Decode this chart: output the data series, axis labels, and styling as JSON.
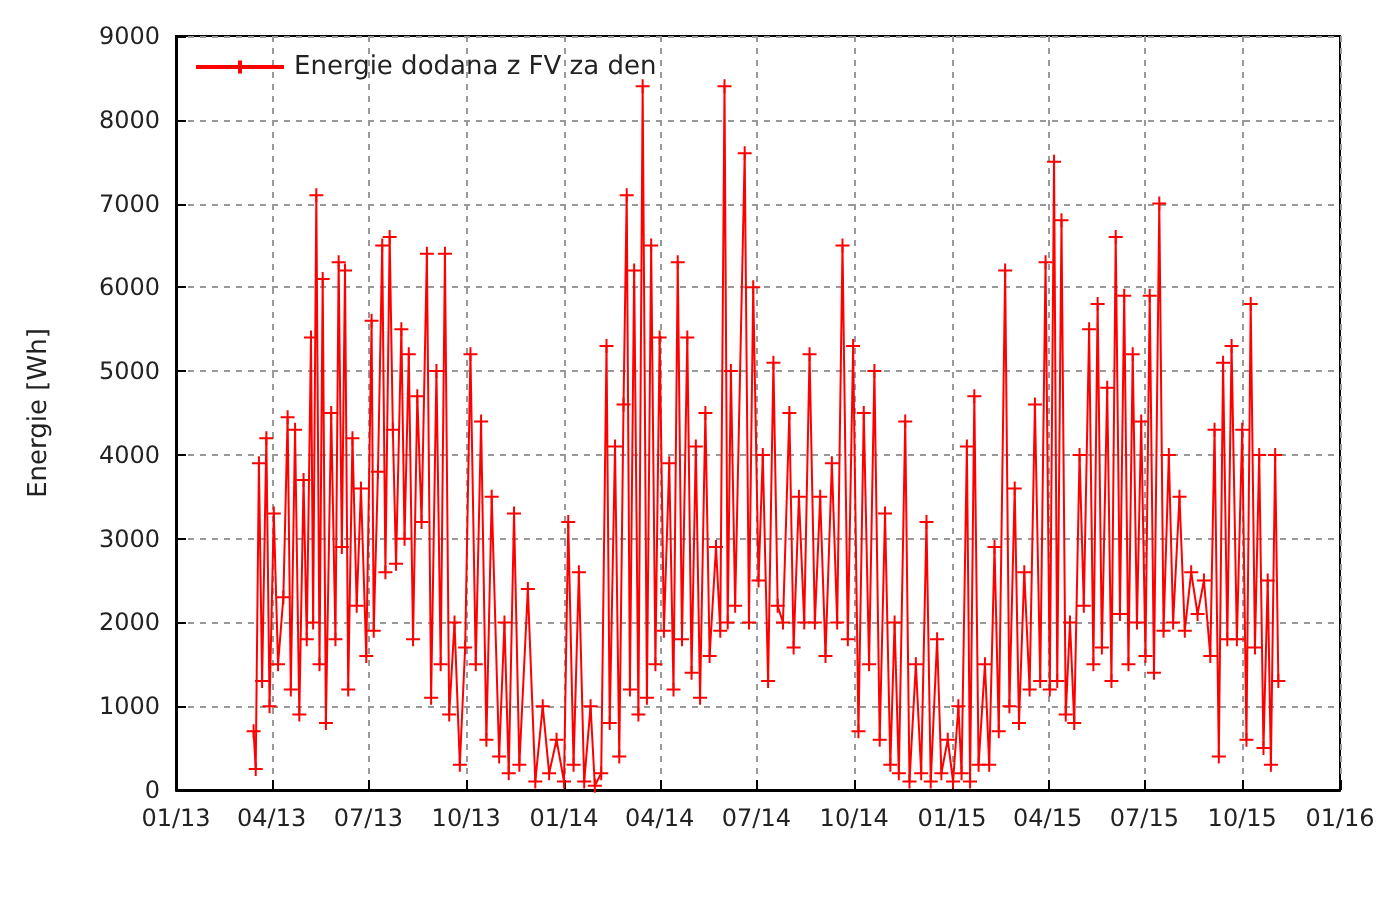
{
  "chart_data": {
    "type": "line",
    "ylabel": "Energie [Wh]",
    "legend": "top left",
    "grid": true,
    "marker": "cross",
    "line_style": "solid",
    "xlim": [
      "2013-01-01",
      "2016-01-01"
    ],
    "xticks": [
      {
        "value": "2013-01-01",
        "label": "01/13"
      },
      {
        "value": "2013-04-01",
        "label": "04/13"
      },
      {
        "value": "2013-07-01",
        "label": "07/13"
      },
      {
        "value": "2013-10-01",
        "label": "10/13"
      },
      {
        "value": "2014-01-01",
        "label": "01/14"
      },
      {
        "value": "2014-04-01",
        "label": "04/14"
      },
      {
        "value": "2014-07-01",
        "label": "07/14"
      },
      {
        "value": "2014-10-01",
        "label": "10/14"
      },
      {
        "value": "2015-01-01",
        "label": "01/15"
      },
      {
        "value": "2015-04-01",
        "label": "04/15"
      },
      {
        "value": "2015-07-01",
        "label": "07/15"
      },
      {
        "value": "2015-10-01",
        "label": "10/15"
      },
      {
        "value": "2016-01-01",
        "label": "01/16"
      }
    ],
    "ylim": [
      0,
      9000
    ],
    "yticks": [
      0,
      1000,
      2000,
      3000,
      4000,
      5000,
      6000,
      7000,
      8000,
      9000
    ],
    "x": [
      "2013-03-15",
      "2013-03-17",
      "2013-03-20",
      "2013-03-23",
      "2013-03-27",
      "2013-03-30",
      "2013-04-03",
      "2013-04-07",
      "2013-04-12",
      "2013-04-16",
      "2013-04-19",
      "2013-04-23",
      "2013-04-27",
      "2013-05-01",
      "2013-05-04",
      "2013-05-08",
      "2013-05-10",
      "2013-05-13",
      "2013-05-16",
      "2013-05-19",
      "2013-05-22",
      "2013-05-27",
      "2013-05-31",
      "2013-06-03",
      "2013-06-06",
      "2013-06-09",
      "2013-06-12",
      "2013-06-16",
      "2013-06-20",
      "2013-06-24",
      "2013-06-29",
      "2013-07-04",
      "2013-07-06",
      "2013-07-10",
      "2013-07-14",
      "2013-07-17",
      "2013-07-21",
      "2013-07-24",
      "2013-07-27",
      "2013-08-01",
      "2013-08-04",
      "2013-08-08",
      "2013-08-12",
      "2013-08-16",
      "2013-08-20",
      "2013-08-25",
      "2013-08-29",
      "2013-09-03",
      "2013-09-07",
      "2013-09-11",
      "2013-09-15",
      "2013-09-20",
      "2013-09-25",
      "2013-09-30",
      "2013-10-05",
      "2013-10-10",
      "2013-10-15",
      "2013-10-20",
      "2013-10-25",
      "2013-11-01",
      "2013-11-06",
      "2013-11-10",
      "2013-11-15",
      "2013-11-20",
      "2013-11-28",
      "2013-12-05",
      "2013-12-12",
      "2013-12-18",
      "2013-12-25",
      "2014-01-01",
      "2014-01-05",
      "2014-01-10",
      "2014-01-15",
      "2014-01-20",
      "2014-01-26",
      "2014-01-30",
      "2014-02-05",
      "2014-02-10",
      "2014-02-13",
      "2014-02-18",
      "2014-02-22",
      "2014-02-26",
      "2014-03-01",
      "2014-03-04",
      "2014-03-08",
      "2014-03-12",
      "2014-03-16",
      "2014-03-20",
      "2014-03-24",
      "2014-03-28",
      "2014-04-01",
      "2014-04-05",
      "2014-04-10",
      "2014-04-14",
      "2014-04-18",
      "2014-04-22",
      "2014-04-27",
      "2014-05-01",
      "2014-05-05",
      "2014-05-09",
      "2014-05-14",
      "2014-05-18",
      "2014-05-24",
      "2014-05-28",
      "2014-06-01",
      "2014-06-04",
      "2014-06-07",
      "2014-06-11",
      "2014-06-20",
      "2014-06-24",
      "2014-06-28",
      "2014-07-03",
      "2014-07-07",
      "2014-07-12",
      "2014-07-17",
      "2014-07-21",
      "2014-07-26",
      "2014-08-01",
      "2014-08-05",
      "2014-08-10",
      "2014-08-15",
      "2014-08-20",
      "2014-08-25",
      "2014-08-30",
      "2014-09-04",
      "2014-09-10",
      "2014-09-15",
      "2014-09-20",
      "2014-09-25",
      "2014-09-30",
      "2014-10-05",
      "2014-10-10",
      "2014-10-15",
      "2014-10-20",
      "2014-10-25",
      "2014-10-30",
      "2014-11-04",
      "2014-11-08",
      "2014-11-12",
      "2014-11-18",
      "2014-11-22",
      "2014-11-28",
      "2014-12-03",
      "2014-12-08",
      "2014-12-12",
      "2014-12-18",
      "2014-12-22",
      "2014-12-28",
      "2015-01-02",
      "2015-01-07",
      "2015-01-10",
      "2015-01-15",
      "2015-01-18",
      "2015-01-22",
      "2015-01-26",
      "2015-02-01",
      "2015-02-05",
      "2015-02-10",
      "2015-02-14",
      "2015-02-20",
      "2015-02-24",
      "2015-03-01",
      "2015-03-05",
      "2015-03-10",
      "2015-03-15",
      "2015-03-20",
      "2015-03-25",
      "2015-03-30",
      "2015-04-03",
      "2015-04-07",
      "2015-04-10",
      "2015-04-14",
      "2015-04-18",
      "2015-04-22",
      "2015-04-26",
      "2015-05-01",
      "2015-05-05",
      "2015-05-10",
      "2015-05-14",
      "2015-05-18",
      "2015-05-22",
      "2015-05-27",
      "2015-05-31",
      "2015-06-04",
      "2015-06-08",
      "2015-06-12",
      "2015-06-16",
      "2015-06-20",
      "2015-06-24",
      "2015-06-28",
      "2015-07-02",
      "2015-07-06",
      "2015-07-10",
      "2015-07-15",
      "2015-07-19",
      "2015-07-24",
      "2015-07-28",
      "2015-08-03",
      "2015-08-08",
      "2015-08-14",
      "2015-08-20",
      "2015-08-26",
      "2015-09-01",
      "2015-09-05",
      "2015-09-09",
      "2015-09-13",
      "2015-09-17",
      "2015-09-21",
      "2015-09-26",
      "2015-10-01",
      "2015-10-05",
      "2015-10-09",
      "2015-10-13",
      "2015-10-17",
      "2015-10-21",
      "2015-10-25",
      "2015-10-28",
      "2015-11-01",
      "2015-11-04"
    ],
    "series": [
      {
        "name": "Energie dodana z FV za den",
        "color": "#ff0000",
        "values": [
          700,
          250,
          3900,
          1300,
          4200,
          1000,
          3300,
          1500,
          2300,
          4450,
          1200,
          4300,
          900,
          3700,
          1800,
          5400,
          2000,
          7100,
          1500,
          6100,
          800,
          4500,
          1800,
          6300,
          2900,
          6200,
          1200,
          4200,
          2200,
          3600,
          1600,
          5600,
          1900,
          3800,
          6500,
          2600,
          6600,
          4300,
          2700,
          5500,
          3000,
          5200,
          1800,
          4700,
          3200,
          6400,
          1100,
          5000,
          1500,
          6400,
          900,
          2000,
          300,
          1700,
          5200,
          1500,
          4400,
          600,
          3500,
          400,
          2000,
          200,
          3300,
          300,
          2400,
          100,
          1000,
          200,
          600,
          100,
          3200,
          300,
          2600,
          100,
          1000,
          50,
          200,
          5300,
          800,
          4100,
          400,
          4600,
          7100,
          1200,
          6200,
          900,
          8400,
          1100,
          6500,
          1500,
          5400,
          1900,
          3900,
          1200,
          6300,
          1800,
          5400,
          1400,
          4100,
          1100,
          4500,
          1600,
          2900,
          1900,
          8400,
          2000,
          5000,
          2200,
          7600,
          2000,
          6000,
          2500,
          4000,
          1300,
          5100,
          2200,
          2000,
          4500,
          1700,
          3500,
          2000,
          5200,
          2000,
          3500,
          1600,
          3900,
          2000,
          6500,
          1800,
          5300,
          700,
          4500,
          1500,
          5000,
          600,
          3300,
          300,
          2000,
          200,
          4400,
          100,
          1500,
          200,
          3200,
          100,
          1800,
          200,
          600,
          100,
          1000,
          200,
          4100,
          100,
          4700,
          300,
          1500,
          300,
          2900,
          700,
          6200,
          1000,
          3600,
          800,
          2600,
          1200,
          4600,
          1300,
          6300,
          1200,
          7500,
          1300,
          6800,
          900,
          2000,
          800,
          4000,
          2200,
          5500,
          1500,
          5800,
          1700,
          4800,
          1300,
          6600,
          2100,
          5900,
          1500,
          5200,
          2000,
          4400,
          1600,
          5900,
          1400,
          7000,
          1900,
          4000,
          2000,
          3500,
          1900,
          2600,
          2100,
          2500,
          1600,
          4300,
          400,
          5100,
          1800,
          5300,
          1800,
          4300,
          600,
          5800,
          1700,
          4000,
          500,
          2500,
          300,
          4000,
          1300
        ]
      }
    ]
  }
}
